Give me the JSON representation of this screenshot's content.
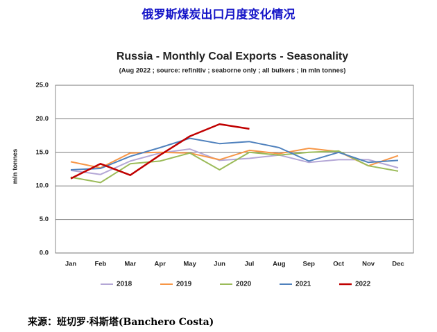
{
  "header_title": "俄罗斯煤炭出口月度变化情况",
  "source": "来源：班切罗·科斯塔(Banchero Costa)",
  "chart_data": {
    "type": "line",
    "title": "Russia - Monthly Coal Exports - Seasonality",
    "subtitle": "(Aug 2022 ; source: refinitiv ; seaborne only ; all bulkers ; in mln tonnes)",
    "y_label": "mln tonnes",
    "categories": [
      "Jan",
      "Feb",
      "Mar",
      "Apr",
      "May",
      "Jun",
      "Jul",
      "Aug",
      "Sep",
      "Oct",
      "Nov",
      "Dec"
    ],
    "ylim": [
      0,
      25
    ],
    "yticks": [
      {
        "value": 0,
        "label": "0.0"
      },
      {
        "value": 5,
        "label": "5.0"
      },
      {
        "value": 10,
        "label": "10.0"
      },
      {
        "value": 15,
        "label": "15.0"
      },
      {
        "value": 20,
        "label": "20.0"
      },
      {
        "value": 25,
        "label": "25.0"
      }
    ],
    "grid": true,
    "legend": "bottom",
    "series": [
      {
        "name": "2018",
        "color": "#b4a7d6",
        "values": [
          12.3,
          11.7,
          13.7,
          14.9,
          15.5,
          13.8,
          14.1,
          14.6,
          13.5,
          13.9,
          13.9,
          12.7
        ]
      },
      {
        "name": "2019",
        "color": "#f79646",
        "values": [
          13.6,
          12.7,
          14.9,
          15.0,
          14.9,
          13.9,
          15.3,
          14.8,
          15.6,
          15.1,
          13.0,
          14.5
        ]
      },
      {
        "name": "2020",
        "color": "#9bbb59",
        "values": [
          11.3,
          10.5,
          13.3,
          13.7,
          14.9,
          12.4,
          15.0,
          14.6,
          15.0,
          15.2,
          13.0,
          12.2
        ]
      },
      {
        "name": "2021",
        "color": "#4f81bd",
        "values": [
          12.4,
          12.6,
          14.4,
          15.7,
          17.1,
          16.3,
          16.6,
          15.7,
          13.7,
          15.0,
          13.5,
          13.8
        ]
      },
      {
        "name": "2022",
        "color": "#c00000",
        "values": [
          11.1,
          13.3,
          11.6,
          14.6,
          17.4,
          19.2,
          18.5,
          null,
          null,
          null,
          null,
          null
        ]
      }
    ]
  }
}
